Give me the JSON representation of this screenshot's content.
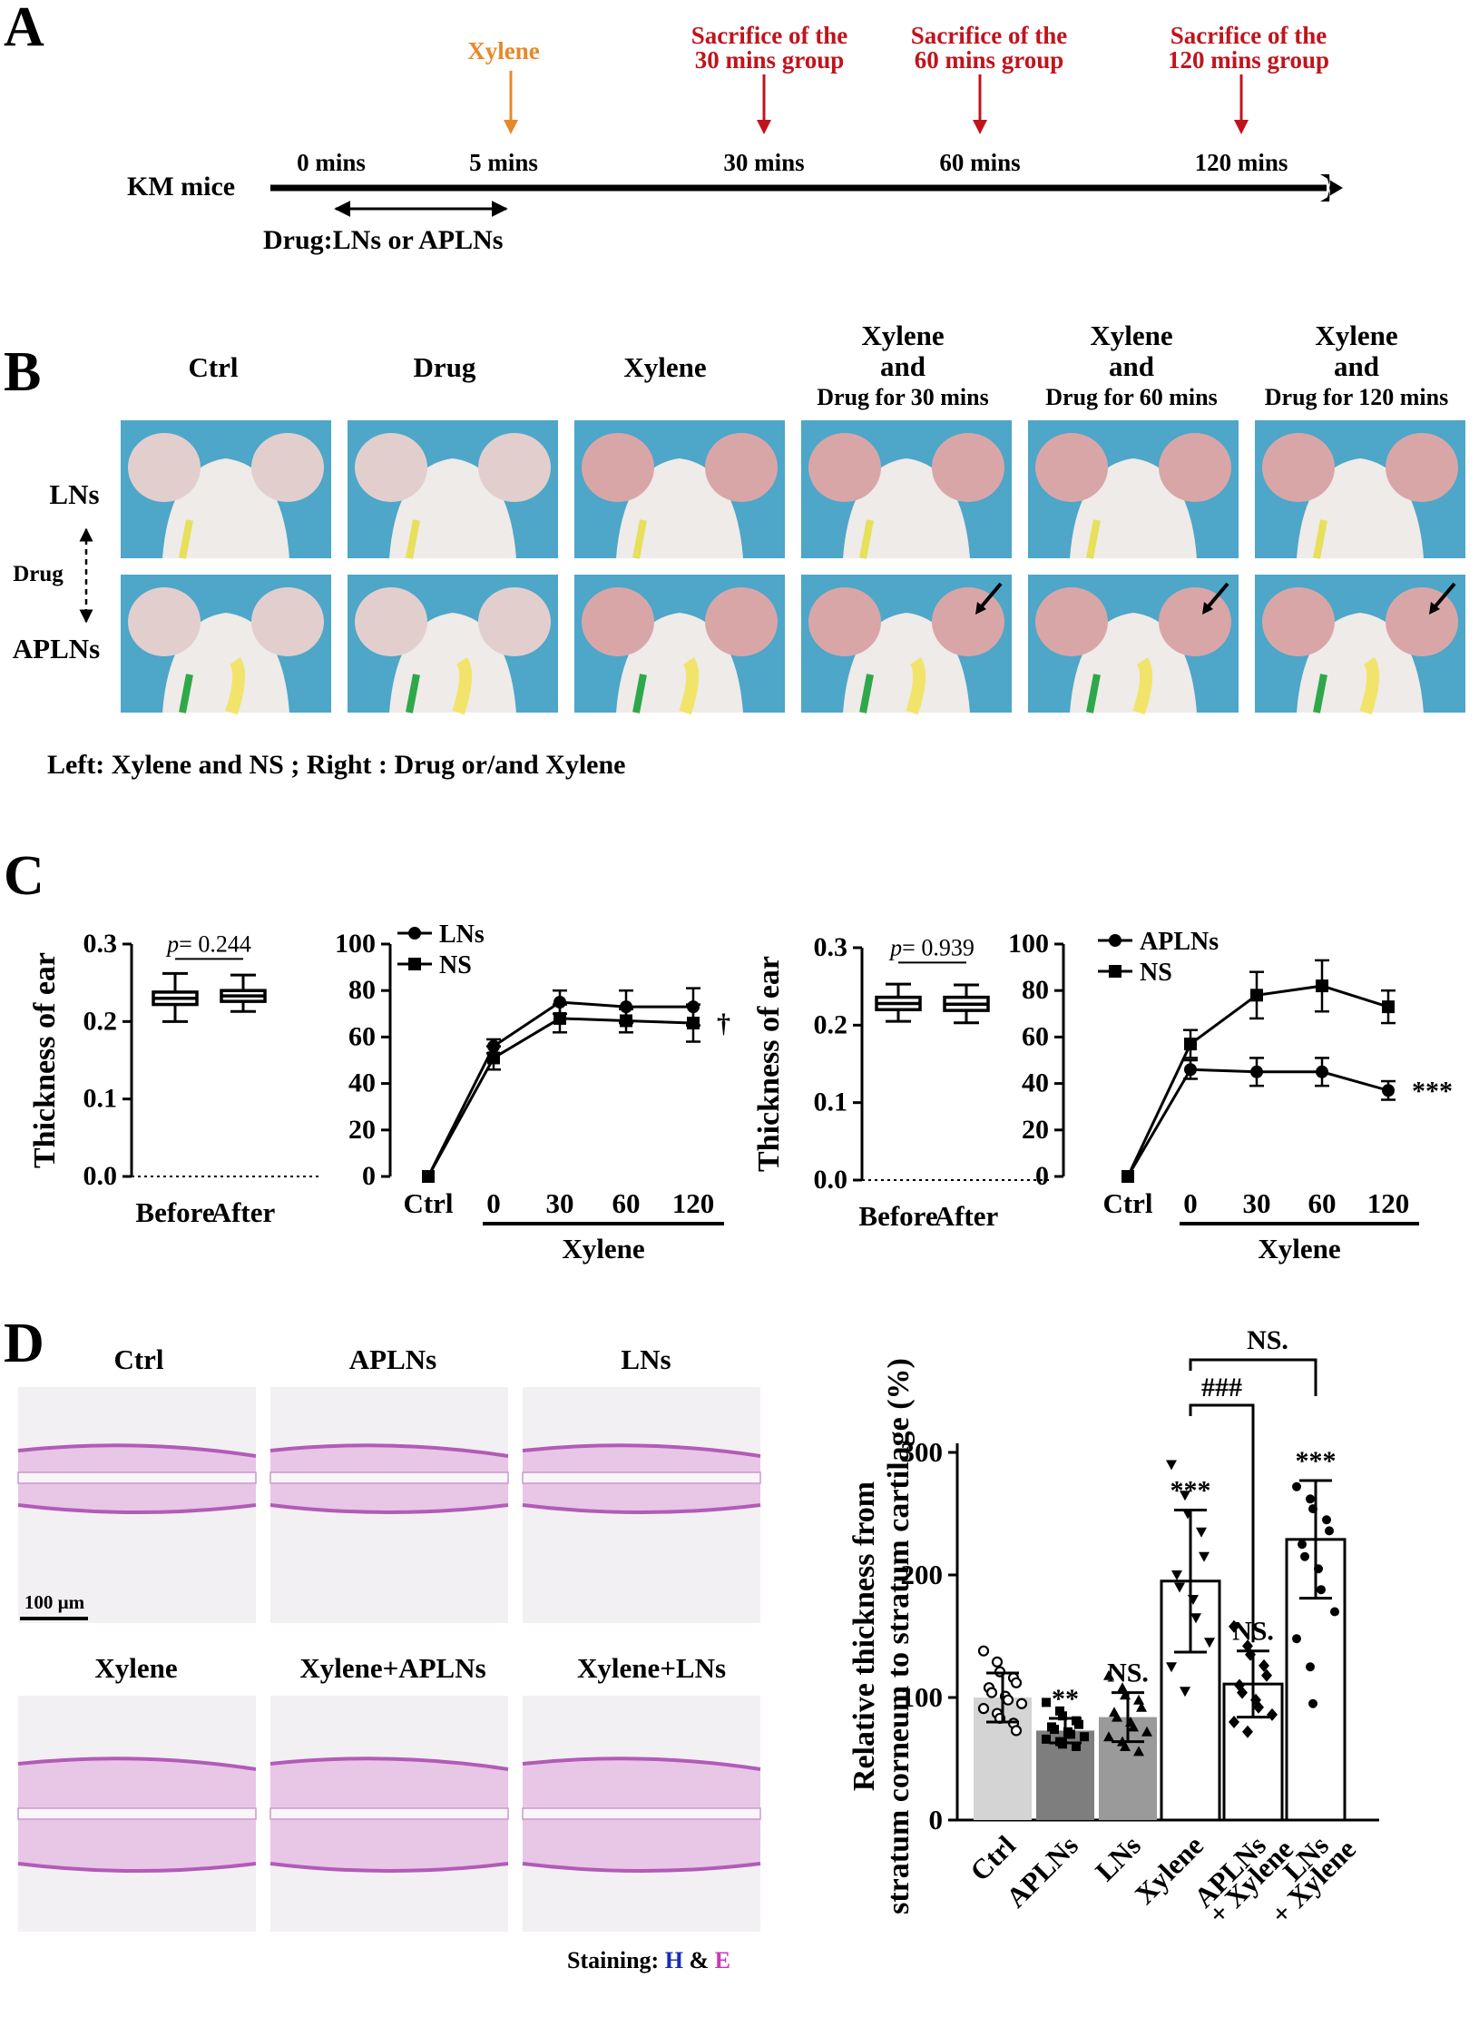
{
  "panel_letters": [
    "A",
    "B",
    "C",
    "D"
  ],
  "timeline": {
    "subject": "KM mice",
    "ticks": [
      "0 mins",
      "5 mins",
      "30 mins",
      "60 mins",
      "120 mins"
    ],
    "xylene_label": "Xylene",
    "sacrifice": [
      [
        "Sacrifice of the",
        "30 mins group"
      ],
      [
        "Sacrifice of the",
        "60 mins group"
      ],
      [
        "Sacrifice of the",
        "120 mins group"
      ]
    ],
    "drug_label": "Drug:LNs or APLNs",
    "colors": {
      "xylene": "#e8882a",
      "sacrifice": "#c0141c"
    }
  },
  "panel_b": {
    "columns": [
      [
        "Ctrl"
      ],
      [
        "Drug"
      ],
      [
        "Xylene"
      ],
      [
        "Xylene",
        "and",
        "Drug for 30 mins"
      ],
      [
        "Xylene",
        "and",
        "Drug for 60 mins"
      ],
      [
        "Xylene",
        "and",
        "Drug for 120 mins"
      ]
    ],
    "rows": [
      "LNs",
      "APLNs"
    ],
    "side_label": "Drug",
    "caption": "Left: Xylene and NS ; Right : Drug or/and Xylene"
  },
  "panel_d": {
    "histology_labels": [
      "Ctrl",
      "APLNs",
      "LNs",
      "Xylene",
      "Xylene+APLNs",
      "Xylene+LNs"
    ],
    "scale_bar": "100 µm",
    "staining": {
      "prefix": "Staining: ",
      "h": "H",
      "amp": " & ",
      "e": "E"
    },
    "colors": {
      "h": "#1a2bb8",
      "e": "#c83ab8"
    }
  },
  "chart_data": [
    {
      "type": "box",
      "title": "",
      "ylabel": "Thickness of ear",
      "categories": [
        "Before",
        "After"
      ],
      "ylim": [
        0,
        0.3
      ],
      "yticks": [
        "0.0",
        "0.1",
        "0.2",
        "0.3"
      ],
      "annotation": "p= 0.244",
      "boxes": [
        {
          "name": "Before",
          "min": 0.2,
          "q1": 0.222,
          "median": 0.23,
          "q3": 0.238,
          "max": 0.262
        },
        {
          "name": "After",
          "min": 0.213,
          "q1": 0.226,
          "median": 0.233,
          "q3": 0.24,
          "max": 0.26
        }
      ]
    },
    {
      "type": "line",
      "x": [
        "Ctrl",
        "0",
        "30",
        "60",
        "120"
      ],
      "xgroup_label": "Xylene",
      "ylim": [
        0,
        100
      ],
      "yticks": [
        "0",
        "20",
        "40",
        "60",
        "80",
        "100"
      ],
      "significance": "†",
      "series": [
        {
          "name": "LNs",
          "marker": "circle",
          "values": [
            0,
            56,
            75,
            73,
            73
          ],
          "errors": [
            0,
            3,
            5,
            7,
            8
          ]
        },
        {
          "name": "NS",
          "marker": "square",
          "values": [
            0,
            51,
            68,
            67,
            66
          ],
          "errors": [
            0,
            5,
            6,
            5,
            8
          ]
        }
      ]
    },
    {
      "type": "box",
      "title": "",
      "ylabel": "Thickness of ear",
      "categories": [
        "Before",
        "After"
      ],
      "ylim": [
        0,
        0.3
      ],
      "yticks": [
        "0.0",
        "0.1",
        "0.2",
        "0.3"
      ],
      "annotation": "p= 0.939",
      "boxes": [
        {
          "name": "Before",
          "min": 0.205,
          "q1": 0.22,
          "median": 0.228,
          "q3": 0.236,
          "max": 0.253
        },
        {
          "name": "After",
          "min": 0.203,
          "q1": 0.219,
          "median": 0.227,
          "q3": 0.236,
          "max": 0.252
        }
      ]
    },
    {
      "type": "line",
      "x": [
        "Ctrl",
        "0",
        "30",
        "60",
        "120"
      ],
      "xgroup_label": "Xylene",
      "ylim": [
        0,
        100
      ],
      "yticks": [
        "0",
        "20",
        "40",
        "60",
        "80",
        "100"
      ],
      "significance": "***",
      "series": [
        {
          "name": "APLNs",
          "marker": "circle",
          "values": [
            0,
            46,
            45,
            45,
            37
          ],
          "errors": [
            0,
            4,
            6,
            6,
            4
          ]
        },
        {
          "name": "NS",
          "marker": "square",
          "values": [
            0,
            57,
            78,
            82,
            73
          ],
          "errors": [
            0,
            6,
            10,
            11,
            7
          ]
        }
      ]
    },
    {
      "type": "bar",
      "ylabel": [
        "Relative thickness from",
        "stratum corneum to stratum cartilage (%)"
      ],
      "categories": [
        [
          "Ctrl"
        ],
        [
          "APLNs"
        ],
        [
          "LNs"
        ],
        [
          "Xylene"
        ],
        [
          "APLNs",
          "+ Xylene"
        ],
        [
          "LNs",
          "+ Xylene"
        ]
      ],
      "ylim": [
        0,
        300
      ],
      "yticks": [
        "0",
        "100",
        "200",
        "300"
      ],
      "values": [
        100,
        73,
        84,
        195,
        111,
        229
      ],
      "errors": [
        20,
        10,
        20,
        58,
        27,
        48
      ],
      "bar_colors": [
        "#d4d4d4",
        "#7e7e7e",
        "#9a9a9a",
        "#ffffff",
        "#ffffff",
        "#ffffff"
      ],
      "point_markers": [
        "circle-open",
        "square",
        "triangle",
        "triangle-down",
        "diamond",
        "circle"
      ],
      "points": [
        [
          138,
          129,
          121,
          116,
          112,
          108,
          104,
          101,
          98,
          95,
          91,
          87,
          83,
          79,
          73
        ],
        [
          96,
          89,
          85,
          81,
          78,
          76,
          74,
          72,
          70,
          68,
          66,
          64,
          62,
          60
        ],
        [
          118,
          108,
          102,
          98,
          92,
          88,
          84,
          80,
          76,
          72,
          68,
          64,
          60,
          56
        ],
        [
          290,
          265,
          250,
          235,
          215,
          200,
          190,
          180,
          165,
          145,
          125,
          105
        ],
        [
          158,
          142,
          135,
          126,
          118,
          110,
          104,
          98,
          92,
          86,
          80,
          72
        ],
        [
          272,
          262,
          254,
          245,
          236,
          225,
          215,
          205,
          188,
          170,
          148,
          125,
          95
        ]
      ],
      "significance": [
        "",
        "**",
        "NS.",
        "***",
        "NS.",
        "***"
      ],
      "brackets": [
        "###",
        "NS."
      ]
    }
  ]
}
